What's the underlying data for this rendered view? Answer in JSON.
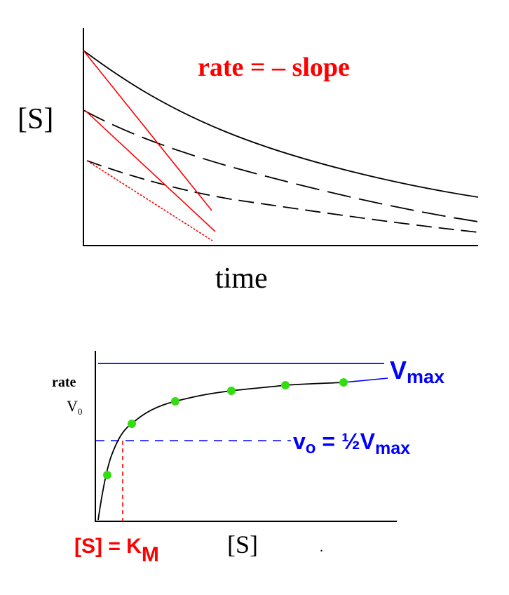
{
  "chart_data": [
    {
      "type": "line",
      "title": "",
      "annotation": "rate = – slope",
      "ylabel": "[S]",
      "xlabel": "time",
      "grid": false,
      "series": [
        {
          "style": "solid",
          "color": "#000000"
        },
        {
          "style": "long-dash",
          "color": "#000000"
        },
        {
          "style": "short-dash",
          "color": "#000000"
        }
      ],
      "tangents": [
        {
          "style": "solid",
          "color": "#ff0000"
        },
        {
          "style": "solid",
          "color": "#ff0000"
        },
        {
          "style": "dotted",
          "color": "#ff0000"
        }
      ]
    },
    {
      "type": "scatter",
      "title": "",
      "ylabel": {
        "line1": "rate",
        "line2_base": "V",
        "line2_sub": "0"
      },
      "xlabel": "[S]",
      "grid": false,
      "points_count": 6,
      "point_color": "#33dd11",
      "curve_color": "#000000",
      "asymptote_color": "#0000ff",
      "vmax_label": {
        "base": "V",
        "sub": "max"
      },
      "half_vmax_label": {
        "base": "v",
        "sub": "o",
        "mid": " = ½V",
        "sub2": "max"
      },
      "km_label": {
        "text": "[S] = K",
        "sub": "M"
      },
      "km_color": "#ff0000",
      "stray_mark": "."
    }
  ]
}
